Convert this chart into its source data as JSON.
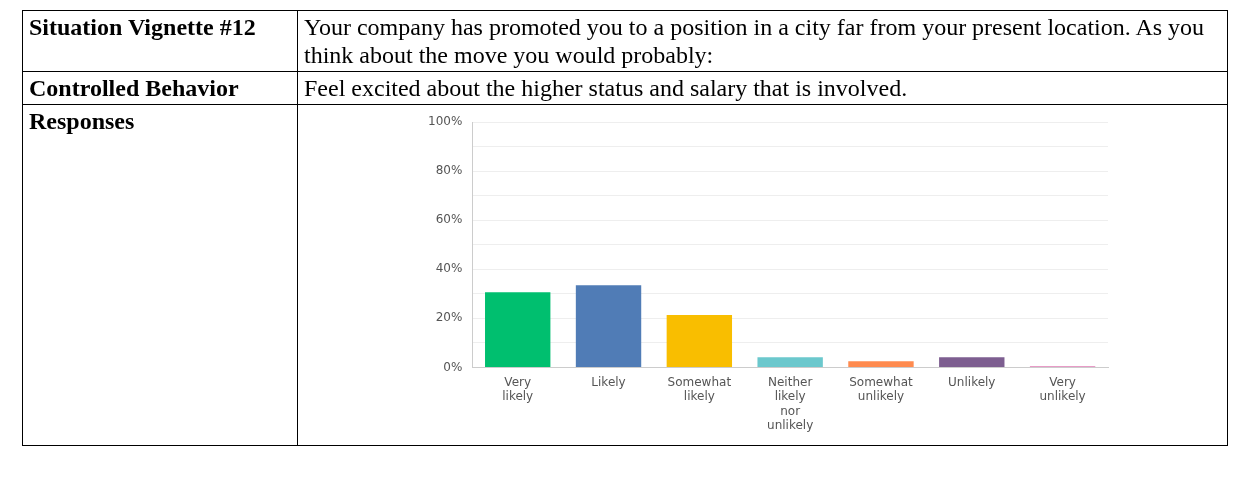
{
  "chart_data": {
    "type": "bar",
    "annotations": [
      "Situation Vignette #12",
      "Your company has promoted you to a position in a city far from your present location. As you think about the move you would probably:",
      "Controlled Behavior",
      "Feel excited about the higher status and salary that is involved.",
      "Responses"
    ],
    "categories": [
      "Very likely",
      "Likely",
      "Somewhat likely",
      "Neither likely nor unlikely",
      "Somewhat unlikely",
      "Unlikely",
      "Very unlikely"
    ],
    "values": [
      30.6,
      33.5,
      21.4,
      4.1,
      2.5,
      4.1,
      0.5
    ],
    "colors": [
      "#00bf6f",
      "#507cb6",
      "#f9be00",
      "#6bc8cd",
      "#ff8b4f",
      "#7d5e90",
      "#e17ab4"
    ],
    "ylim": [
      0,
      100
    ],
    "yticks": [
      {
        "value": 0,
        "label": "0%"
      },
      {
        "value": 10,
        "label": null
      },
      {
        "value": 20,
        "label": "20%"
      },
      {
        "value": 30,
        "label": null
      },
      {
        "value": 40,
        "label": "40%"
      },
      {
        "value": 50,
        "label": null
      },
      {
        "value": 60,
        "label": "60%"
      },
      {
        "value": 70,
        "label": null
      },
      {
        "value": 80,
        "label": "80%"
      },
      {
        "value": 90,
        "label": null
      },
      {
        "value": 100,
        "label": "100%"
      }
    ],
    "grid": "y"
  }
}
